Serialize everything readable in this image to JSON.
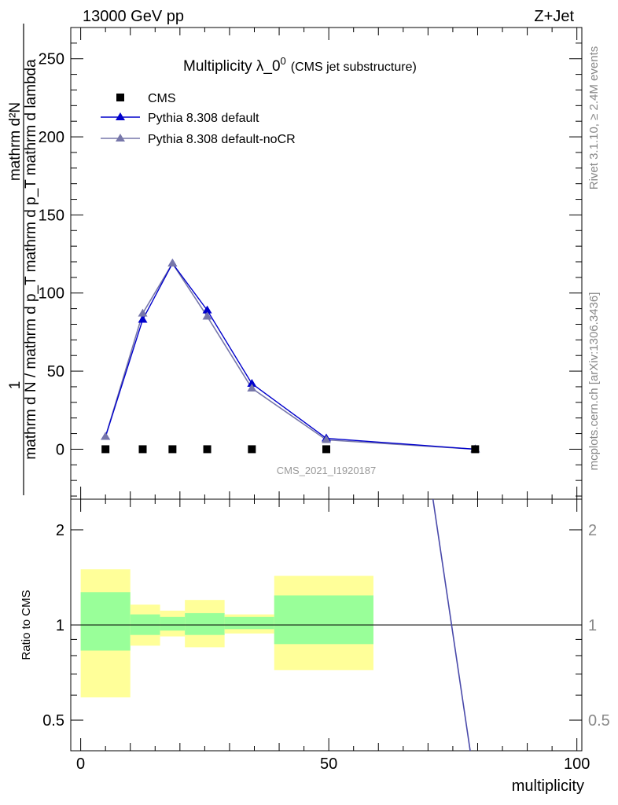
{
  "header": {
    "left": "13000 GeV pp",
    "right": "Z+Jet"
  },
  "side_labels": {
    "rivet": "Rivet 3.1.10, ≥ 2.4M events",
    "mcplots": "mcplots.cern.ch [arXiv:1306.3436]"
  },
  "main_title": {
    "text": "Multiplicity λ_0",
    "superscript": "0",
    "suffix": "(CMS jet substructure)"
  },
  "ylabel": {
    "numerator": "mathrm d²N",
    "denominator_line1": "mathrm d N / mathrm d p_T mathrm d p_T mathrm d lambda",
    "prefix": "1"
  },
  "watermark": "CMS_2021_I1920187",
  "xlabel": "multiplicity",
  "ratio_ylabel": "Ratio to CMS",
  "colors": {
    "cms": "#000000",
    "pythia_default": "#0000cc",
    "pythia_nocr": "#7777aa",
    "band_inner": "#99ff99",
    "band_outer": "#ffff99"
  },
  "chart_data": [
    {
      "type": "line",
      "panel": "main",
      "title": "Multiplicity λ_0^0 (CMS jet substructure)",
      "xlim": [
        -2,
        101
      ],
      "ylim": [
        -32,
        270
      ],
      "yticks": [
        0,
        50,
        100,
        150,
        200,
        250
      ],
      "xticks": [
        0,
        50,
        100
      ],
      "legend_position": "top-left",
      "series": [
        {
          "name": "CMS",
          "marker": "square",
          "x": [
            5,
            12.5,
            18.5,
            25.5,
            34.5,
            49.5,
            79.5
          ],
          "y": [
            0,
            0,
            0,
            0,
            0,
            0,
            0
          ]
        },
        {
          "name": "Pythia 8.308 default",
          "marker": "triangle",
          "x": [
            5,
            12.5,
            18.5,
            25.5,
            34.5,
            49.5,
            79.5
          ],
          "y": [
            8,
            83,
            119,
            89,
            42,
            7,
            0
          ]
        },
        {
          "name": "Pythia 8.308 default-noCR",
          "marker": "triangle",
          "x": [
            5,
            12.5,
            18.5,
            25.5,
            34.5,
            49.5,
            79.5
          ],
          "y": [
            8,
            87,
            119,
            85,
            39,
            6,
            0
          ]
        }
      ]
    },
    {
      "type": "line",
      "panel": "ratio",
      "ylabel": "Ratio to CMS",
      "log_scale": true,
      "ylim": [
        0.4,
        2.5
      ],
      "yticks": [
        0.5,
        1,
        2
      ],
      "bands": [
        {
          "xlo": 0,
          "xhi": 10,
          "inner": [
            0.83,
            1.27
          ],
          "outer": [
            0.59,
            1.5
          ]
        },
        {
          "xlo": 10,
          "xhi": 16,
          "inner": [
            0.93,
            1.08
          ],
          "outer": [
            0.86,
            1.16
          ]
        },
        {
          "xlo": 16,
          "xhi": 21,
          "inner": [
            0.96,
            1.06
          ],
          "outer": [
            0.92,
            1.11
          ]
        },
        {
          "xlo": 21,
          "xhi": 29,
          "inner": [
            0.93,
            1.09
          ],
          "outer": [
            0.85,
            1.2
          ]
        },
        {
          "xlo": 29,
          "xhi": 39,
          "inner": [
            0.97,
            1.06
          ],
          "outer": [
            0.94,
            1.08
          ]
        },
        {
          "xlo": 39,
          "xhi": 59,
          "inner": [
            0.87,
            1.24
          ],
          "outer": [
            0.72,
            1.43
          ]
        }
      ],
      "curve": {
        "x": [
          71,
          78.5
        ],
        "y": [
          2.5,
          0.4
        ]
      }
    }
  ]
}
